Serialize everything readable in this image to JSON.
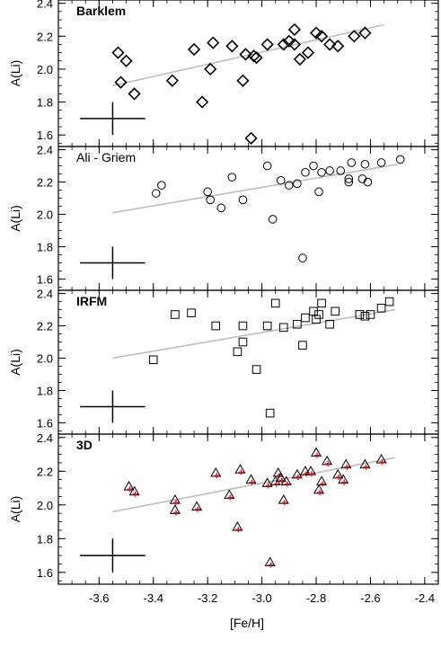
{
  "chart_data": [
    {
      "type": "scatter",
      "title": "Barklem",
      "xlabel": "[Fe/H]",
      "ylabel": "A(Li)",
      "xlim": [
        -3.75,
        -2.35
      ],
      "ylim": [
        1.53,
        2.42
      ],
      "xticks": [
        -3.6,
        -3.4,
        -3.2,
        -3.0,
        -2.8,
        -2.6,
        -2.4
      ],
      "yticks": [
        1.6,
        1.8,
        2.0,
        2.2,
        2.4
      ],
      "xtick_labels": [
        "-3.6",
        "-3.4",
        "-3.2",
        "-3.0",
        "-2.8",
        "-2.6",
        "-2.4"
      ],
      "ytick_labels": [
        "1.6",
        "1.8",
        "2.0",
        "2.2",
        "2.4"
      ],
      "marker": "diamond",
      "fit_line": {
        "x": [
          -3.55,
          -2.55
        ],
        "y": [
          1.9,
          2.27
        ]
      },
      "error_bar": {
        "x": -3.55,
        "y": 1.7,
        "xerr": 0.12,
        "yerr": 0.1
      },
      "points": [
        {
          "x": -3.53,
          "y": 2.1
        },
        {
          "x": -3.5,
          "y": 2.05
        },
        {
          "x": -3.52,
          "y": 1.92
        },
        {
          "x": -3.47,
          "y": 1.85
        },
        {
          "x": -3.33,
          "y": 1.93
        },
        {
          "x": -3.25,
          "y": 2.12
        },
        {
          "x": -3.22,
          "y": 1.8
        },
        {
          "x": -3.19,
          "y": 2.0
        },
        {
          "x": -3.18,
          "y": 2.16
        },
        {
          "x": -3.11,
          "y": 2.14
        },
        {
          "x": -3.07,
          "y": 1.93
        },
        {
          "x": -3.06,
          "y": 2.09
        },
        {
          "x": -3.04,
          "y": 1.58
        },
        {
          "x": -3.03,
          "y": 2.08
        },
        {
          "x": -3.02,
          "y": 2.07
        },
        {
          "x": -2.98,
          "y": 2.15
        },
        {
          "x": -2.92,
          "y": 2.15
        },
        {
          "x": -2.9,
          "y": 2.17
        },
        {
          "x": -2.88,
          "y": 2.15
        },
        {
          "x": -2.88,
          "y": 2.24
        },
        {
          "x": -2.86,
          "y": 2.06
        },
        {
          "x": -2.83,
          "y": 2.1
        },
        {
          "x": -2.8,
          "y": 2.22
        },
        {
          "x": -2.78,
          "y": 2.2
        },
        {
          "x": -2.75,
          "y": 2.15
        },
        {
          "x": -2.72,
          "y": 2.14
        },
        {
          "x": -2.66,
          "y": 2.2
        },
        {
          "x": -2.62,
          "y": 2.22
        }
      ]
    },
    {
      "type": "scatter",
      "title": "Ali - Griem",
      "xlabel": "[Fe/H]",
      "ylabel": "A(Li)",
      "xlim": [
        -3.75,
        -2.35
      ],
      "ylim": [
        1.53,
        2.42
      ],
      "xticks": [
        -3.6,
        -3.4,
        -3.2,
        -3.0,
        -2.8,
        -2.6,
        -2.4
      ],
      "yticks": [
        1.6,
        1.8,
        2.0,
        2.2,
        2.4
      ],
      "xtick_labels": [
        "-3.6",
        "-3.4",
        "-3.2",
        "-3.0",
        "-2.8",
        "-2.6",
        "-2.4"
      ],
      "ytick_labels": [
        "1.6",
        "1.8",
        "2.0",
        "2.2",
        "2.4"
      ],
      "marker": "circle",
      "fit_line": {
        "x": [
          -3.55,
          -2.5
        ],
        "y": [
          2.01,
          2.31
        ]
      },
      "error_bar": {
        "x": -3.55,
        "y": 1.7,
        "xerr": 0.12,
        "yerr": 0.1
      },
      "points": [
        {
          "x": -3.39,
          "y": 2.13
        },
        {
          "x": -3.37,
          "y": 2.18
        },
        {
          "x": -3.2,
          "y": 2.14
        },
        {
          "x": -3.19,
          "y": 2.09
        },
        {
          "x": -3.15,
          "y": 2.04
        },
        {
          "x": -3.11,
          "y": 2.23
        },
        {
          "x": -3.07,
          "y": 2.09
        },
        {
          "x": -2.98,
          "y": 2.3
        },
        {
          "x": -2.96,
          "y": 1.97
        },
        {
          "x": -2.93,
          "y": 2.21
        },
        {
          "x": -2.9,
          "y": 2.18
        },
        {
          "x": -2.87,
          "y": 2.19
        },
        {
          "x": -2.85,
          "y": 1.73
        },
        {
          "x": -2.84,
          "y": 2.26
        },
        {
          "x": -2.81,
          "y": 2.3
        },
        {
          "x": -2.79,
          "y": 2.14
        },
        {
          "x": -2.78,
          "y": 2.26
        },
        {
          "x": -2.75,
          "y": 2.27
        },
        {
          "x": -2.71,
          "y": 2.27
        },
        {
          "x": -2.68,
          "y": 2.22
        },
        {
          "x": -2.68,
          "y": 2.2
        },
        {
          "x": -2.67,
          "y": 2.32
        },
        {
          "x": -2.63,
          "y": 2.22
        },
        {
          "x": -2.62,
          "y": 2.31
        },
        {
          "x": -2.61,
          "y": 2.2
        },
        {
          "x": -2.56,
          "y": 2.32
        },
        {
          "x": -2.49,
          "y": 2.34
        }
      ]
    },
    {
      "type": "scatter",
      "title": "IRFM",
      "xlabel": "[Fe/H]",
      "ylabel": "A(Li)",
      "xlim": [
        -3.75,
        -2.35
      ],
      "ylim": [
        1.53,
        2.42
      ],
      "xticks": [
        -3.6,
        -3.4,
        -3.2,
        -3.0,
        -2.8,
        -2.6,
        -2.4
      ],
      "yticks": [
        1.6,
        1.8,
        2.0,
        2.2,
        2.4
      ],
      "xtick_labels": [
        "-3.6",
        "-3.4",
        "-3.2",
        "-3.0",
        "-2.8",
        "-2.6",
        "-2.4"
      ],
      "ytick_labels": [
        "1.6",
        "1.8",
        "2.0",
        "2.2",
        "2.4"
      ],
      "marker": "square",
      "fit_line": {
        "x": [
          -3.55,
          -2.51
        ],
        "y": [
          2.0,
          2.3
        ]
      },
      "error_bar": {
        "x": -3.55,
        "y": 1.7,
        "xerr": 0.12,
        "yerr": 0.1
      },
      "points": [
        {
          "x": -3.4,
          "y": 1.99
        },
        {
          "x": -3.32,
          "y": 2.27
        },
        {
          "x": -3.26,
          "y": 2.28
        },
        {
          "x": -3.17,
          "y": 2.2
        },
        {
          "x": -3.09,
          "y": 2.04
        },
        {
          "x": -3.07,
          "y": 2.2
        },
        {
          "x": -3.07,
          "y": 2.1
        },
        {
          "x": -3.02,
          "y": 1.93
        },
        {
          "x": -2.98,
          "y": 2.2
        },
        {
          "x": -2.97,
          "y": 1.66
        },
        {
          "x": -2.95,
          "y": 2.34
        },
        {
          "x": -2.92,
          "y": 2.19
        },
        {
          "x": -2.87,
          "y": 2.21
        },
        {
          "x": -2.85,
          "y": 2.08
        },
        {
          "x": -2.84,
          "y": 2.25
        },
        {
          "x": -2.81,
          "y": 2.29
        },
        {
          "x": -2.8,
          "y": 2.24
        },
        {
          "x": -2.79,
          "y": 2.27
        },
        {
          "x": -2.78,
          "y": 2.34
        },
        {
          "x": -2.75,
          "y": 2.21
        },
        {
          "x": -2.73,
          "y": 2.29
        },
        {
          "x": -2.64,
          "y": 2.27
        },
        {
          "x": -2.62,
          "y": 2.26
        },
        {
          "x": -2.6,
          "y": 2.27
        },
        {
          "x": -2.56,
          "y": 2.31
        },
        {
          "x": -2.53,
          "y": 2.35
        }
      ]
    },
    {
      "type": "scatter",
      "title": "3D",
      "xlabel": "[Fe/H]",
      "ylabel": "A(Li)",
      "xlim": [
        -3.75,
        -2.35
      ],
      "ylim": [
        1.53,
        2.42
      ],
      "xticks": [
        -3.6,
        -3.4,
        -3.2,
        -3.0,
        -2.8,
        -2.6,
        -2.4
      ],
      "yticks": [
        1.6,
        1.8,
        2.0,
        2.2,
        2.4
      ],
      "xtick_labels": [
        "-3.6",
        "-3.4",
        "-3.2",
        "-3.0",
        "-2.8",
        "-2.6",
        "-2.4"
      ],
      "ytick_labels": [
        "1.6",
        "1.8",
        "2.0",
        "2.2",
        "2.4"
      ],
      "marker": "triangle",
      "secondary_marker": "plus",
      "marker_color": "#000000",
      "secondary_color": "#e8141a",
      "fit_line": {
        "x": [
          -3.55,
          -2.51
        ],
        "y": [
          1.96,
          2.28
        ]
      },
      "error_bar": {
        "x": -3.55,
        "y": 1.7,
        "xerr": 0.12,
        "yerr": 0.1
      },
      "points": [
        {
          "x": -3.49,
          "y": 2.11
        },
        {
          "x": -3.47,
          "y": 2.08
        },
        {
          "x": -3.32,
          "y": 2.03
        },
        {
          "x": -3.32,
          "y": 1.97
        },
        {
          "x": -3.24,
          "y": 1.99
        },
        {
          "x": -3.17,
          "y": 2.19
        },
        {
          "x": -3.12,
          "y": 2.06
        },
        {
          "x": -3.09,
          "y": 1.87
        },
        {
          "x": -3.08,
          "y": 2.21
        },
        {
          "x": -3.04,
          "y": 2.15
        },
        {
          "x": -2.98,
          "y": 2.13
        },
        {
          "x": -2.97,
          "y": 1.66
        },
        {
          "x": -2.95,
          "y": 2.14
        },
        {
          "x": -2.94,
          "y": 2.19
        },
        {
          "x": -2.93,
          "y": 2.16
        },
        {
          "x": -2.92,
          "y": 2.03
        },
        {
          "x": -2.91,
          "y": 2.14
        },
        {
          "x": -2.87,
          "y": 2.18
        },
        {
          "x": -2.84,
          "y": 2.2
        },
        {
          "x": -2.82,
          "y": 2.2
        },
        {
          "x": -2.8,
          "y": 2.31
        },
        {
          "x": -2.79,
          "y": 2.09
        },
        {
          "x": -2.78,
          "y": 2.14
        },
        {
          "x": -2.76,
          "y": 2.26
        },
        {
          "x": -2.72,
          "y": 2.18
        },
        {
          "x": -2.7,
          "y": 2.15
        },
        {
          "x": -2.69,
          "y": 2.24
        },
        {
          "x": -2.62,
          "y": 2.24
        },
        {
          "x": -2.56,
          "y": 2.27
        }
      ]
    }
  ]
}
